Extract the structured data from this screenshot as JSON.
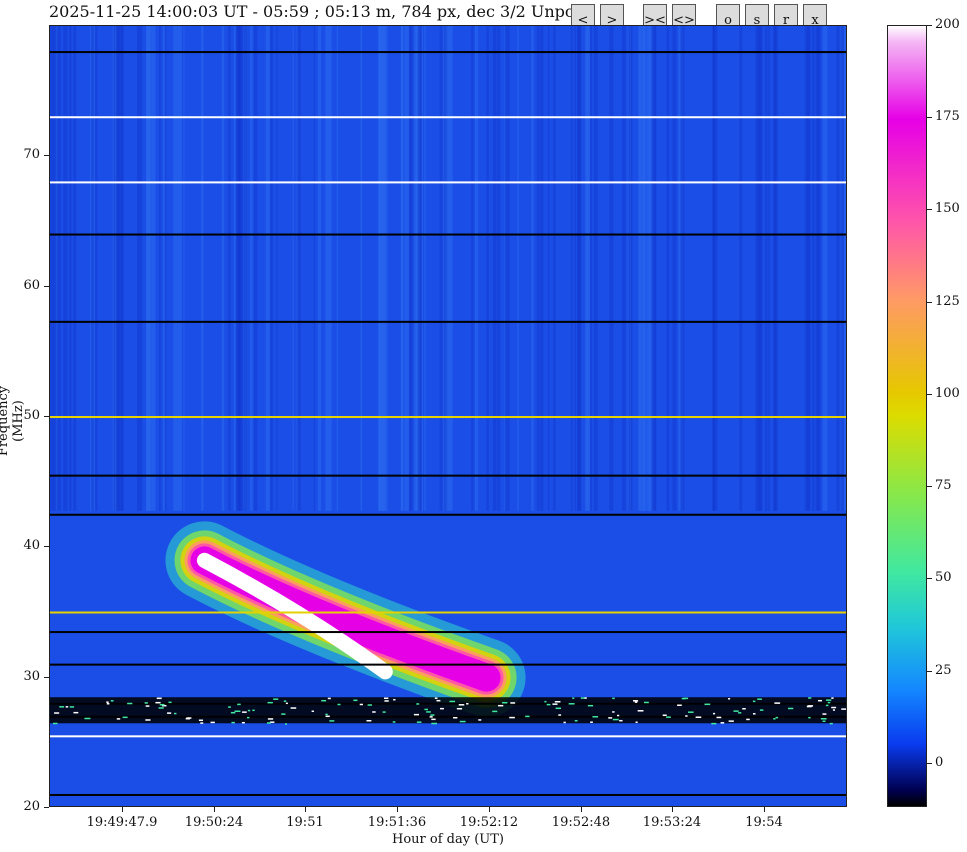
{
  "title": "2025-11-25 14:00:03 UT - 05:59 ; 05:13 m, 784 px, dec 3/2 Unpo",
  "toolbar": [
    {
      "name": "prev-button",
      "label": "<"
    },
    {
      "name": "next-button",
      "label": ">"
    },
    {
      "name": "zoom-in-time-button",
      "label": "><"
    },
    {
      "name": "zoom-out-time-button",
      "label": "<>"
    },
    {
      "name": "o-button",
      "label": "o"
    },
    {
      "name": "s-button",
      "label": "s"
    },
    {
      "name": "r-button",
      "label": "r"
    },
    {
      "name": "x-button",
      "label": "x"
    }
  ],
  "chart_data": {
    "type": "heatmap",
    "title": "2025-11-25 14:00:03 UT - 05:59 ; 05:13 m, 784 px, dec 3/2 Unpo",
    "xlabel": "Hour of day (UT)",
    "ylabel": "Frequency (MHz)",
    "xticks": [
      "19:49:47.9",
      "19:50:24",
      "19:51",
      "19:51:36",
      "19:52:12",
      "19:52:48",
      "19:53:24",
      "19:54"
    ],
    "yticks": [
      20,
      30,
      40,
      50,
      60,
      70
    ],
    "ylim": [
      20,
      80
    ],
    "colorbar": {
      "ticks": [
        0,
        25,
        50,
        75,
        100,
        125,
        150,
        175,
        200
      ],
      "range": [
        -12,
        200
      ],
      "colormap": "gist_ncar"
    },
    "features": [
      {
        "kind": "type-III burst",
        "start_time": "19:50:10",
        "end_time": "19:52:30",
        "freq_start_mhz": 39,
        "freq_end_mhz": 30,
        "peak_intensity": 200
      }
    ],
    "interference_bands_mhz": [
      21,
      25.5,
      27,
      28,
      31,
      33.5,
      35,
      42.5,
      45.5,
      50,
      57.3,
      64,
      68,
      73,
      78
    ]
  }
}
